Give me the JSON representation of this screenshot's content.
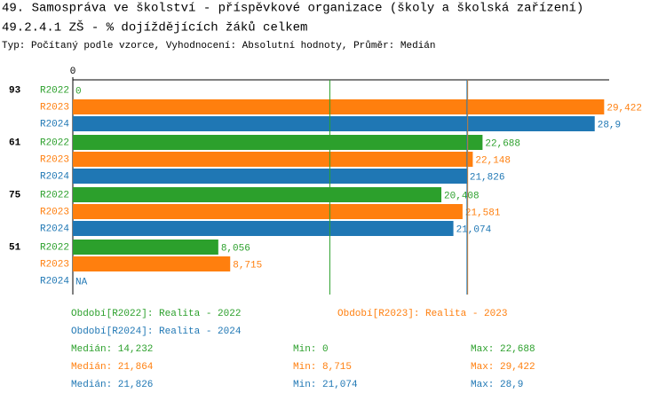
{
  "chart_data": {
    "type": "bar",
    "title": "49. Samospráva ve školství - příspěvkové organizace (školy a školská zařízení)",
    "subtitle": "49.2.4.1 ZŠ - % dojíždějících žáků celkem",
    "note": "Typ: Počítaný podle vzorce, Vyhodnocení: Absolutní hodnoty, Průměr: Medián",
    "categories": [
      "93",
      "61",
      "75",
      "51"
    ],
    "xlim": [
      0,
      29.7
    ],
    "xticks": [
      0
    ],
    "stat_labels": {
      "median": "Medián:",
      "min": "Min:",
      "max": "Max:"
    },
    "series": [
      {
        "name": "R2022",
        "legend": "Období[R2022]: Realita - 2022",
        "color": "#2ca02c",
        "values": [
          0,
          22.688,
          20.408,
          8.056
        ],
        "value_labels": [
          "0",
          "22,688",
          "20,408",
          "8,056"
        ],
        "median": {
          "value": 14.232,
          "label": "14,232"
        },
        "min": "0",
        "max": "22,688"
      },
      {
        "name": "R2023",
        "legend": "Období[R2023]: Realita - 2023",
        "color": "#ff7f0e",
        "values": [
          29.422,
          22.148,
          21.581,
          8.715
        ],
        "value_labels": [
          "29,422",
          "22,148",
          "21,581",
          "8,715"
        ],
        "median": {
          "value": 21.864,
          "label": "21,864"
        },
        "min": "8,715",
        "max": "29,422"
      },
      {
        "name": "R2024",
        "legend": "Období[R2024]: Realita - 2024",
        "color": "#1f77b4",
        "values": [
          28.9,
          21.826,
          21.074,
          null
        ],
        "value_labels": [
          "28,9",
          "21,826",
          "21,074",
          "NA"
        ],
        "median": {
          "value": 21.826,
          "label": "21,826"
        },
        "min": "21,074",
        "max": "28,9"
      }
    ]
  }
}
